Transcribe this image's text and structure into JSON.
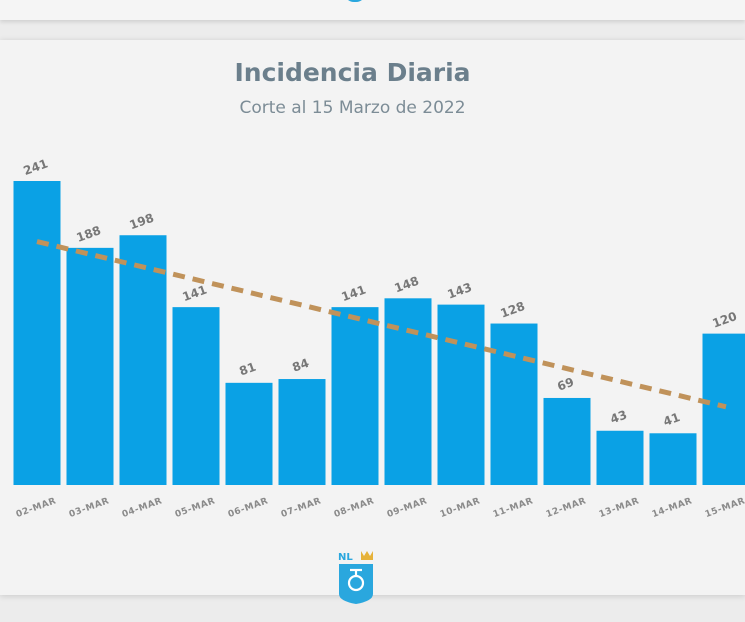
{
  "chart_data": {
    "type": "bar",
    "title": "Incidencia Diaria",
    "subtitle": "Corte al 15 Marzo de 2022",
    "categories": [
      "02-MAR",
      "03-MAR",
      "04-MAR",
      "05-MAR",
      "06-MAR",
      "07-MAR",
      "08-MAR",
      "09-MAR",
      "10-MAR",
      "11-MAR",
      "12-MAR",
      "13-MAR",
      "14-MAR",
      "15-MAR"
    ],
    "values": [
      241,
      188,
      198,
      141,
      81,
      84,
      141,
      148,
      143,
      128,
      69,
      43,
      41,
      120
    ],
    "trendline": {
      "style": "dashed",
      "color": "#c0925a",
      "from": 193,
      "to": 62
    },
    "bar_color": "#0aa1e5",
    "ylim": [
      0,
      241
    ],
    "grid": false,
    "legend": "none"
  },
  "branding": {
    "logo_text": "NL",
    "logo_icon": "nuevo-leon-shield-icon",
    "logo_color": "#2aa7de",
    "crown_color": "#e6b23a"
  }
}
